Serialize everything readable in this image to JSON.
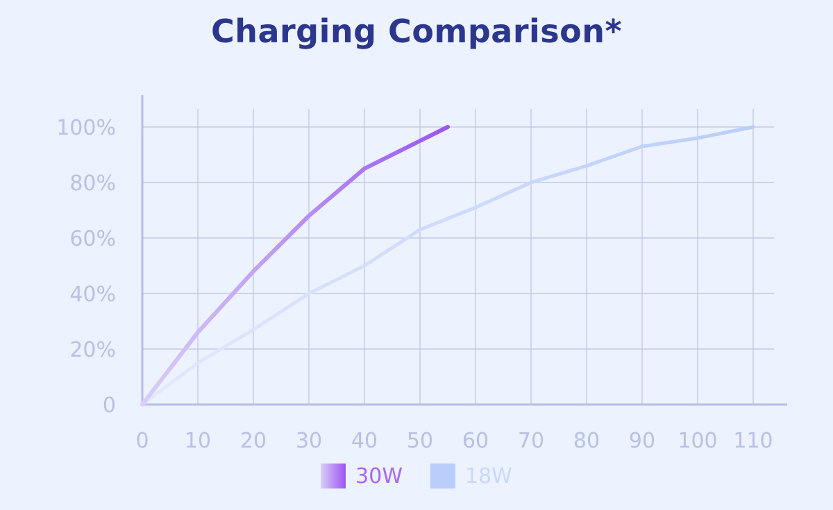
{
  "title": "Charging Comparison*",
  "colors": {
    "background": "#ecf2fe",
    "title": "#2b368c",
    "axis": "#b6bde6",
    "grid": "#bcc3e2",
    "tick_text": "#b9c1e4",
    "series_30w_start": "#d9cff8",
    "series_30w_end": "#9b55f2",
    "series_18w_start": "#e3e9fb",
    "series_18w_end": "#b9cdfb"
  },
  "chart_data": {
    "type": "line",
    "title": "Charging Comparison*",
    "xlabel": "",
    "ylabel": "",
    "xlim": [
      0,
      110
    ],
    "ylim": [
      0,
      100
    ],
    "x_ticks": [
      "0",
      "10",
      "20",
      "30",
      "40",
      "50",
      "60",
      "70",
      "80",
      "90",
      "100",
      "110"
    ],
    "y_ticks": [
      "0",
      "20%",
      "40%",
      "60%",
      "80%",
      "100%"
    ],
    "grid": true,
    "legend_position": "bottom",
    "series": [
      {
        "name": "30W",
        "x": [
          0,
          10,
          20,
          30,
          40,
          50,
          55
        ],
        "y": [
          0,
          26,
          48,
          68,
          85,
          95,
          100
        ]
      },
      {
        "name": "18W",
        "x": [
          0,
          10,
          20,
          30,
          40,
          50,
          60,
          70,
          80,
          90,
          100,
          110
        ],
        "y": [
          0,
          15,
          27,
          40,
          50,
          63,
          71,
          80,
          86,
          93,
          96,
          100
        ]
      }
    ]
  },
  "legend": {
    "items": [
      {
        "label": "30W",
        "color": "#a868f5"
      },
      {
        "label": "18W",
        "color": "#c9d8fb"
      }
    ]
  }
}
